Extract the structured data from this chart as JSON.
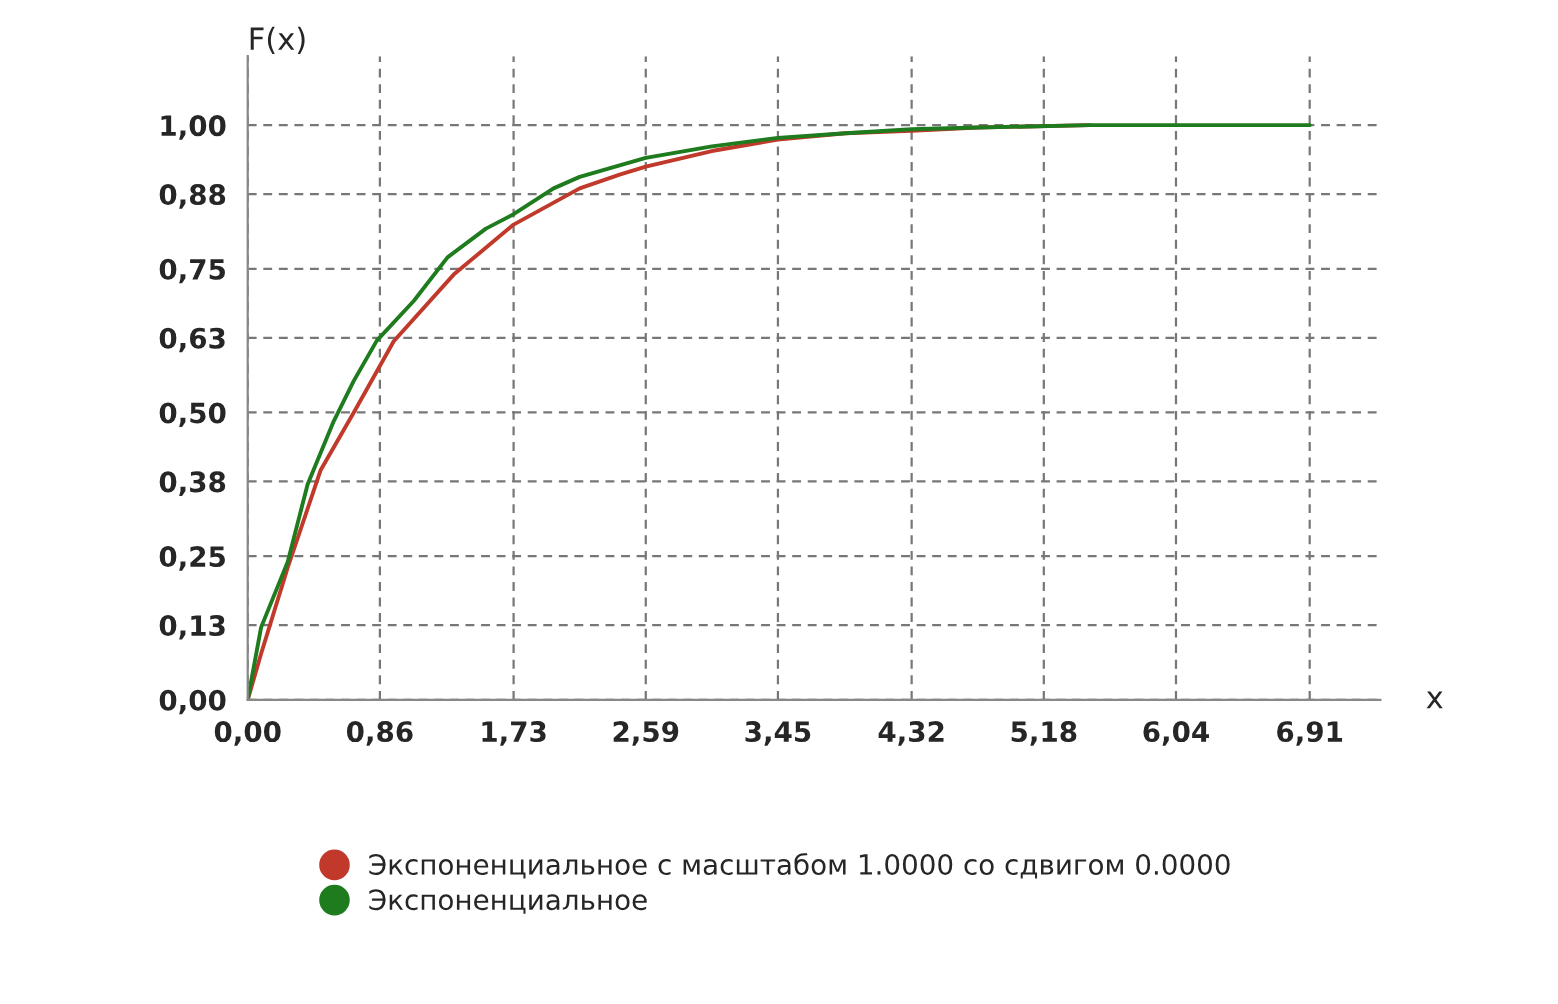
{
  "chart_data": {
    "type": "line",
    "xlabel": "x",
    "ylabel": "F(x)",
    "xlim": [
      0,
      7.37
    ],
    "ylim": [
      0,
      1.12
    ],
    "xticks": [
      {
        "value": 0,
        "label": "0,00"
      },
      {
        "value": 0.86,
        "label": "0,86"
      },
      {
        "value": 1.73,
        "label": "1,73"
      },
      {
        "value": 2.59,
        "label": "2,59"
      },
      {
        "value": 3.45,
        "label": "3,45"
      },
      {
        "value": 4.32,
        "label": "4,32"
      },
      {
        "value": 5.18,
        "label": "5,18"
      },
      {
        "value": 6.04,
        "label": "6,04"
      },
      {
        "value": 6.91,
        "label": "6,91"
      }
    ],
    "yticks": [
      {
        "value": 0,
        "label": "0,00"
      },
      {
        "value": 0.13,
        "label": "0,13"
      },
      {
        "value": 0.25,
        "label": "0,25"
      },
      {
        "value": 0.38,
        "label": "0,38"
      },
      {
        "value": 0.5,
        "label": "0,50"
      },
      {
        "value": 0.63,
        "label": "0,63"
      },
      {
        "value": 0.75,
        "label": "0,75"
      },
      {
        "value": 0.88,
        "label": "0,88"
      },
      {
        "value": 1,
        "label": "1,00"
      }
    ],
    "grid": true,
    "legend": "bottom",
    "marker": "none",
    "line_style": "solid",
    "series": [
      {
        "name": "Экспоненциальное с масштабом 1.0000 со сдвигом 0.0000",
        "color": "#c0392b",
        "x": [
          0,
          0.087,
          0.26,
          0.475,
          0.69,
          0.95,
          1.34,
          1.73,
          2.16,
          2.42,
          2.59,
          3.02,
          3.45,
          3.89,
          4.32,
          4.75,
          5.48
        ],
        "values": [
          0,
          0.08,
          0.23,
          0.4,
          0.5,
          0.624,
          0.74,
          0.827,
          0.89,
          0.914,
          0.928,
          0.955,
          0.975,
          0.986,
          0.99,
          0.996,
          1.0
        ]
      },
      {
        "name": "Экспоненциальное",
        "color": "#1e7b1e",
        "x": [
          0,
          0.087,
          0.26,
          0.39,
          0.56,
          0.69,
          0.84,
          1.08,
          1.3,
          1.55,
          1.73,
          1.99,
          2.16,
          2.42,
          2.59,
          3.02,
          3.45,
          3.89,
          4.32,
          4.75,
          5.48,
          6.91
        ],
        "values": [
          0,
          0.126,
          0.24,
          0.375,
          0.485,
          0.555,
          0.625,
          0.694,
          0.77,
          0.82,
          0.845,
          0.89,
          0.91,
          0.93,
          0.943,
          0.963,
          0.978,
          0.986,
          0.993,
          0.996,
          1.0,
          1.0
        ]
      }
    ]
  }
}
